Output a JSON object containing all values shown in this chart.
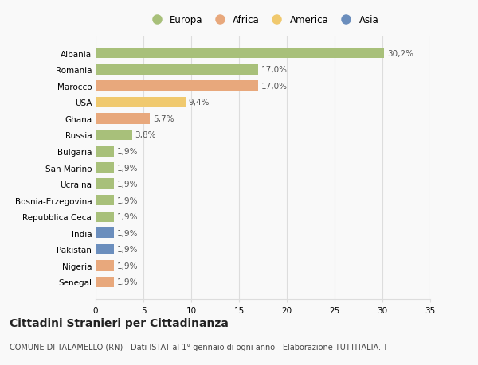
{
  "categories": [
    "Albania",
    "Romania",
    "Marocco",
    "USA",
    "Ghana",
    "Russia",
    "Bulgaria",
    "San Marino",
    "Ucraina",
    "Bosnia-Erzegovina",
    "Repubblica Ceca",
    "India",
    "Pakistan",
    "Nigeria",
    "Senegal"
  ],
  "values": [
    30.2,
    17.0,
    17.0,
    9.4,
    5.7,
    3.8,
    1.9,
    1.9,
    1.9,
    1.9,
    1.9,
    1.9,
    1.9,
    1.9,
    1.9
  ],
  "labels": [
    "30,2%",
    "17,0%",
    "17,0%",
    "9,4%",
    "5,7%",
    "3,8%",
    "1,9%",
    "1,9%",
    "1,9%",
    "1,9%",
    "1,9%",
    "1,9%",
    "1,9%",
    "1,9%",
    "1,9%"
  ],
  "colors": [
    "#a8c07a",
    "#a8c07a",
    "#e8a87c",
    "#f0c96e",
    "#e8a87c",
    "#a8c07a",
    "#a8c07a",
    "#a8c07a",
    "#a8c07a",
    "#a8c07a",
    "#a8c07a",
    "#6b8ebd",
    "#6b8ebd",
    "#e8a87c",
    "#e8a87c"
  ],
  "legend_labels": [
    "Europa",
    "Africa",
    "America",
    "Asia"
  ],
  "legend_colors": [
    "#a8c07a",
    "#e8a87c",
    "#f0c96e",
    "#6b8ebd"
  ],
  "xlim": [
    0,
    35
  ],
  "xticks": [
    0,
    5,
    10,
    15,
    20,
    25,
    30,
    35
  ],
  "title": "Cittadini Stranieri per Cittadinanza",
  "subtitle": "COMUNE DI TALAMELLO (RN) - Dati ISTAT al 1° gennaio di ogni anno - Elaborazione TUTTITALIA.IT",
  "background_color": "#f9f9f9",
  "grid_color": "#dddddd",
  "bar_height": 0.65,
  "label_fontsize": 7.5,
  "tick_fontsize": 7.5,
  "legend_fontsize": 8.5,
  "title_fontsize": 10,
  "subtitle_fontsize": 7
}
